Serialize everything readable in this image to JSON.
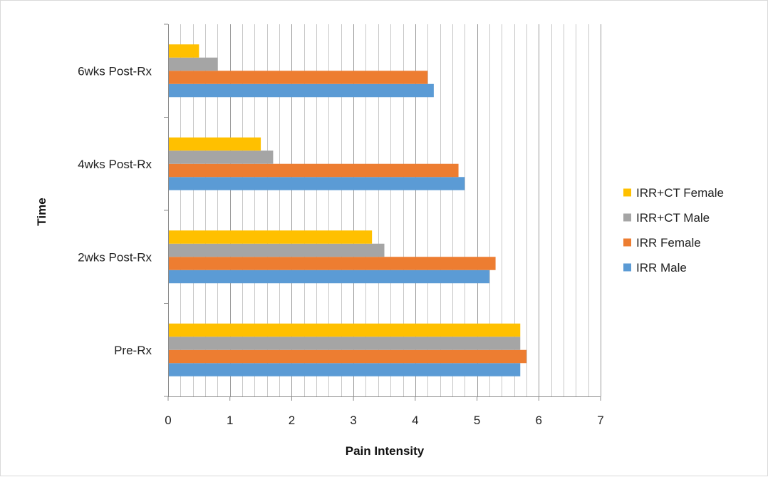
{
  "chart_data": {
    "type": "bar",
    "orientation": "horizontal",
    "title": "",
    "xlabel": "Pain Intensity",
    "ylabel": "Time",
    "xlim": [
      0,
      7
    ],
    "x_ticks": [
      "0",
      "1",
      "2",
      "3",
      "4",
      "5",
      "6",
      "7"
    ],
    "grid": "vertical",
    "legend_position": "right",
    "categories": [
      "Pre-Rx",
      "2wks Post-Rx",
      "4wks Post-Rx",
      "6wks Post-Rx"
    ],
    "series": [
      {
        "name": "IRR Male",
        "color": "#5b9bd5",
        "values": [
          5.7,
          5.2,
          4.8,
          4.3
        ]
      },
      {
        "name": "IRR Female",
        "color": "#ed7d31",
        "values": [
          5.8,
          5.3,
          4.7,
          4.2
        ]
      },
      {
        "name": "IRR+CT Male",
        "color": "#a5a5a5",
        "values": [
          5.7,
          3.5,
          1.7,
          0.8
        ]
      },
      {
        "name": "IRR+CT Female",
        "color": "#ffc000",
        "values": [
          5.7,
          3.3,
          1.5,
          0.5
        ]
      }
    ]
  }
}
